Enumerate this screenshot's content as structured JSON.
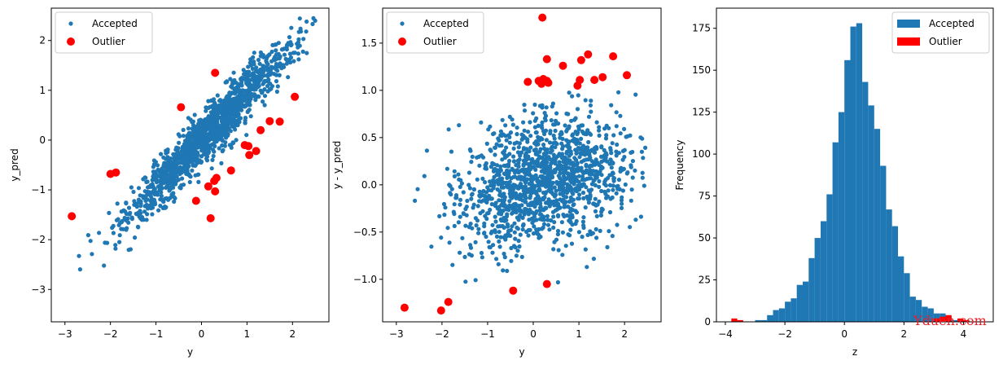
{
  "colors": {
    "accepted": "#1f77b4",
    "outlier": "#ff0000"
  },
  "watermark": "Yduen.com",
  "chart_data": [
    {
      "type": "scatter",
      "xlabel": "y",
      "ylabel": "y_pred",
      "xlim": [
        -3.3,
        2.8
      ],
      "ylim": [
        -3.65,
        2.65
      ],
      "xticks": [
        -3,
        -2,
        -1,
        0,
        1,
        2
      ],
      "yticks": [
        -3,
        -2,
        -1,
        0,
        1,
        2
      ],
      "legend": "top-left",
      "series": [
        {
          "name": "Accepted",
          "marker": "small-dot",
          "generated": "linear-cloud",
          "count": 1400,
          "center": 0.2,
          "spread": 0.9,
          "slope": 0.93,
          "noise": 0.26
        },
        {
          "name": "Outlier",
          "marker": "large-dot",
          "points": [
            [
              -2.85,
              -1.53
            ],
            [
              -2.0,
              -0.68
            ],
            [
              -1.88,
              -0.65
            ],
            [
              -0.45,
              0.66
            ],
            [
              0.3,
              1.35
            ],
            [
              -0.12,
              -1.22
            ],
            [
              0.15,
              -0.93
            ],
            [
              0.28,
              -0.82
            ],
            [
              0.33,
              -0.76
            ],
            [
              0.3,
              -1.03
            ],
            [
              0.2,
              -1.57
            ],
            [
              0.65,
              -0.61
            ],
            [
              0.95,
              -0.1
            ],
            [
              1.03,
              -0.12
            ],
            [
              1.05,
              -0.3
            ],
            [
              1.2,
              -0.22
            ],
            [
              1.3,
              0.2
            ],
            [
              1.5,
              0.38
            ],
            [
              1.72,
              0.37
            ],
            [
              2.05,
              0.87
            ]
          ]
        }
      ]
    },
    {
      "type": "scatter",
      "xlabel": "y",
      "ylabel": "y - y_pred",
      "xlim": [
        -3.3,
        2.8
      ],
      "ylim": [
        -1.45,
        1.87
      ],
      "xticks": [
        -3,
        -2,
        -1,
        0,
        1,
        2
      ],
      "yticks": [
        -1.0,
        -0.5,
        0.0,
        0.5,
        1.0,
        1.5
      ],
      "legend": "top-left",
      "series": [
        {
          "name": "Accepted",
          "marker": "small-dot",
          "generated": "residual-cloud",
          "count": 1400,
          "center": 0.2,
          "spread": 0.9,
          "noise": 0.33
        },
        {
          "name": "Outlier",
          "marker": "large-dot",
          "points": [
            [
              -2.82,
              -1.3
            ],
            [
              -2.02,
              -1.33
            ],
            [
              -1.86,
              -1.24
            ],
            [
              -0.44,
              -1.12
            ],
            [
              0.3,
              -1.05
            ],
            [
              0.2,
              1.77
            ],
            [
              -0.12,
              1.09
            ],
            [
              0.12,
              1.1
            ],
            [
              0.18,
              1.07
            ],
            [
              0.22,
              1.12
            ],
            [
              0.3,
              1.33
            ],
            [
              0.3,
              1.1
            ],
            [
              0.33,
              1.08
            ],
            [
              0.65,
              1.26
            ],
            [
              0.97,
              1.05
            ],
            [
              1.02,
              1.11
            ],
            [
              1.05,
              1.32
            ],
            [
              1.2,
              1.38
            ],
            [
              1.34,
              1.11
            ],
            [
              1.52,
              1.14
            ],
            [
              1.75,
              1.36
            ],
            [
              2.05,
              1.16
            ]
          ]
        }
      ]
    },
    {
      "type": "bar",
      "subtype": "histogram",
      "xlabel": "z",
      "ylabel": "Frequency",
      "xlim": [
        -4.3,
        5.0
      ],
      "ylim": [
        0,
        187
      ],
      "xticks": [
        -4,
        -2,
        0,
        2,
        4
      ],
      "yticks": [
        0,
        25,
        50,
        75,
        100,
        125,
        150,
        175
      ],
      "legend": "top-right",
      "bin_edges": [
        -3.8,
        -3.6,
        -3.4,
        -3.2,
        -3.0,
        -2.8,
        -2.6,
        -2.4,
        -2.2,
        -2.0,
        -1.8,
        -1.6,
        -1.4,
        -1.2,
        -1.0,
        -0.8,
        -0.6,
        -0.4,
        -0.2,
        0.0,
        0.2,
        0.4,
        0.6,
        0.8,
        1.0,
        1.2,
        1.4,
        1.6,
        1.8,
        2.0,
        2.2,
        2.4,
        2.6,
        2.8,
        3.0,
        3.2,
        3.4,
        3.6,
        3.8,
        4.0,
        4.2,
        4.4,
        4.6,
        4.8
      ],
      "series": [
        {
          "name": "Accepted",
          "values": [
            0,
            0,
            0,
            0,
            1,
            1,
            4,
            7,
            8,
            12,
            14,
            22,
            24,
            38,
            50,
            60,
            76,
            107,
            125,
            156,
            176,
            178,
            143,
            129,
            115,
            93,
            67,
            57,
            39,
            29,
            15,
            13,
            9,
            8,
            5,
            5,
            3,
            1,
            1,
            0,
            0,
            0,
            0
          ]
        },
        {
          "name": "Outlier",
          "values": [
            2,
            1,
            0,
            0,
            0,
            0,
            0,
            0,
            0,
            0,
            0,
            0,
            0,
            0,
            0,
            0,
            0,
            0,
            0,
            0,
            0,
            0,
            0,
            0,
            0,
            0,
            0,
            0,
            0,
            0,
            0,
            0,
            0,
            0,
            2,
            3,
            4,
            0,
            2,
            1,
            0,
            0,
            0
          ]
        }
      ]
    }
  ]
}
